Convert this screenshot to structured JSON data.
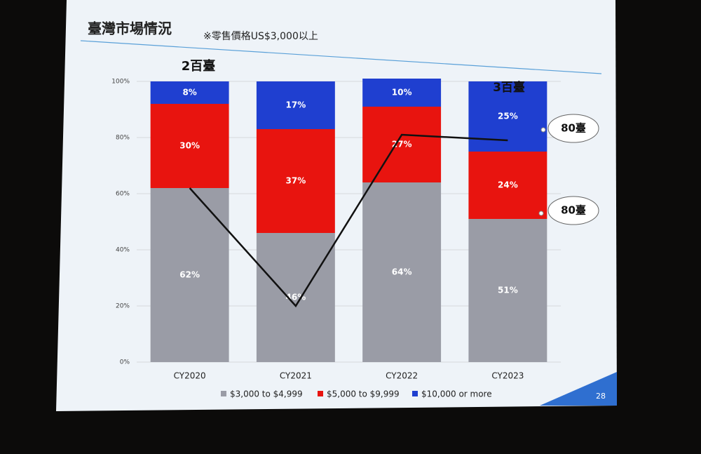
{
  "chart_data": {
    "type": "bar",
    "stacked": true,
    "title": "臺灣市場情況",
    "subtitle": "※零售價格US$3,000以上",
    "categories": [
      "CY2020",
      "CY2021",
      "CY2022",
      "CY2023"
    ],
    "series": [
      {
        "name": "$3,000 to $4,999",
        "color": "#9a9ca6",
        "values": [
          62,
          46,
          64,
          51
        ],
        "value_labels": [
          "62%",
          "46%",
          "64%",
          "51%"
        ]
      },
      {
        "name": "$5,000 to $9,999",
        "color": "#e8140f",
        "values": [
          30,
          37,
          27,
          24
        ],
        "value_labels": [
          "30%",
          "37%",
          "27%",
          "24%"
        ]
      },
      {
        "name": "$10,000 or more",
        "color": "#1f3fd0",
        "values": [
          8,
          17,
          10,
          25
        ],
        "value_labels": [
          "8%",
          "17%",
          "10%",
          "25%"
        ]
      }
    ],
    "overlay": {
      "type": "line",
      "color": "#111111",
      "values": [
        62,
        20,
        81,
        79
      ]
    },
    "ylim": [
      0,
      100
    ],
    "yticks": [
      {
        "value": 0,
        "label": "0%"
      },
      {
        "value": 20,
        "label": "20%"
      },
      {
        "value": 40,
        "label": "40%"
      },
      {
        "value": 60,
        "label": "60%"
      },
      {
        "value": 80,
        "label": "80%"
      },
      {
        "value": 100,
        "label": "100%"
      }
    ],
    "grid": true,
    "legend": "bottom",
    "annotations": [
      "2百臺",
      "3百臺",
      "80臺",
      "80臺"
    ],
    "page_number": "28"
  }
}
